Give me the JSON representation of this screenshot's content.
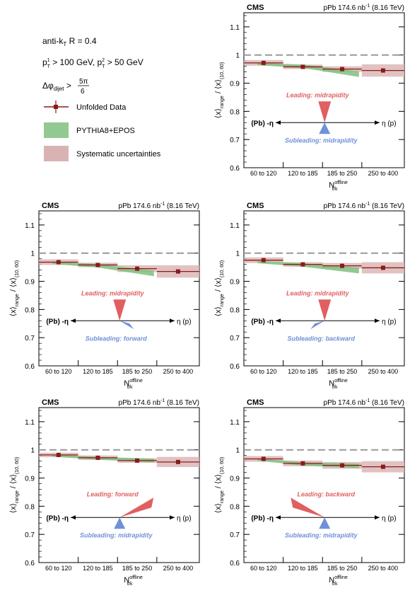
{
  "legend": {
    "line1": "anti-k",
    "line1_sub": "T",
    "line1_rest": " R = 0.4",
    "line2a": "p",
    "line2a_sup": "1",
    "line2a_sub": "T",
    "line2a_rest": " > 100 GeV, p",
    "line2b_sup": "2",
    "line2b_sub": "T",
    "line2b_rest": " > 50 GeV",
    "line3": "Δφ",
    "line3_sub": "dijet",
    "line3_rest": " > ",
    "line3_num": "5π",
    "line3_den": "6",
    "entries": [
      {
        "label": "Unfolded Data"
      },
      {
        "label": "PYTHIA8+EPOS"
      },
      {
        "label": "Systematic uncertainties"
      }
    ]
  },
  "colors": {
    "data": "#8b1a1a",
    "model": "#7fbf7f",
    "syst": "#d9b3b3",
    "leading_arrow": "#e06060",
    "leading_text": "#e06060",
    "subleading_arrow": "#7090d8",
    "subleading_text": "#7090d8"
  },
  "common": {
    "cms": "CMS",
    "lumi": "pPb 174.6 nb",
    "lumi_sup": "-1",
    "energy": " (8.16 TeV)",
    "ylabel_main": "⟨x⟩",
    "ylabel_sub1": "range",
    "ylabel_mid": " / ⟨x⟩",
    "ylabel_sub2": "(10, 60)",
    "xlabel": "N",
    "xlabel_sup": "offline",
    "xlabel_sub": "trk",
    "pb_label": "(Pb) -η",
    "p_label": "η (p)"
  },
  "chart_data": [
    {
      "type": "scatter",
      "categories": [
        "60 to 120",
        "120 to 185",
        "185 to 250",
        "250 to 400"
      ],
      "ylim": [
        0.6,
        1.15
      ],
      "yticks": [
        "0.6",
        "0.7",
        "0.8",
        "0.9",
        "1",
        "1.1"
      ],
      "data": [
        0.972,
        0.958,
        0.95,
        0.945
      ],
      "syst": [
        0.01,
        0.008,
        0.01,
        0.022
      ],
      "model": [
        0.968,
        0.96,
        0.932
      ],
      "model_err": [
        0.004,
        0.006,
        0.01
      ],
      "leading": "Leading: midrapidity",
      "subleading": "Subleading: midrapidity",
      "lead_dir": "down",
      "sub_dir": "up"
    },
    {
      "type": "scatter",
      "categories": [
        "60 to 120",
        "120 to 185",
        "185 to 250",
        "250 to 400"
      ],
      "ylim": [
        0.6,
        1.15
      ],
      "yticks": [
        "0.6",
        "0.7",
        "0.8",
        "0.9",
        "1",
        "1.1"
      ],
      "data": [
        0.968,
        0.958,
        0.945,
        0.935
      ],
      "syst": [
        0.01,
        0.008,
        0.012,
        0.022
      ],
      "model": [
        0.966,
        0.955,
        0.928
      ],
      "model_err": [
        0.004,
        0.006,
        0.01
      ],
      "leading": "Leading: midrapidity",
      "subleading": "Subleading: forward",
      "lead_dir": "down",
      "sub_dir": "down-right"
    },
    {
      "type": "scatter",
      "categories": [
        "60 to 120",
        "120 to 185",
        "185 to 250",
        "250 to 400"
      ],
      "ylim": [
        0.6,
        1.15
      ],
      "yticks": [
        "0.6",
        "0.7",
        "0.8",
        "0.9",
        "1",
        "1.1"
      ],
      "data": [
        0.975,
        0.96,
        0.955,
        0.948
      ],
      "syst": [
        0.01,
        0.008,
        0.01,
        0.02
      ],
      "model": [
        0.968,
        0.958,
        0.938
      ],
      "model_err": [
        0.004,
        0.006,
        0.01
      ],
      "leading": "Leading: midrapidity",
      "subleading": "Subleading: backward",
      "lead_dir": "down",
      "sub_dir": "down-left"
    },
    {
      "type": "scatter",
      "categories": [
        "60 to 120",
        "120 to 185",
        "185 to 250",
        "250 to 400"
      ],
      "ylim": [
        0.6,
        1.15
      ],
      "yticks": [
        "0.6",
        "0.7",
        "0.8",
        "0.9",
        "1",
        "1.1"
      ],
      "data": [
        0.982,
        0.972,
        0.962,
        0.957
      ],
      "syst": [
        0.008,
        0.008,
        0.008,
        0.018
      ],
      "model": [
        0.98,
        0.97,
        0.962
      ],
      "model_err": [
        0.004,
        0.005,
        0.007
      ],
      "leading": "Leading: forward",
      "subleading": "Subleading: midrapidity",
      "lead_dir": "up-right",
      "sub_dir": "up"
    },
    {
      "type": "scatter",
      "categories": [
        "60 to 120",
        "120 to 185",
        "185 to 250",
        "250 to 400"
      ],
      "ylim": [
        0.6,
        1.15
      ],
      "yticks": [
        "0.6",
        "0.7",
        "0.8",
        "0.9",
        "1",
        "1.1"
      ],
      "data": [
        0.968,
        0.952,
        0.945,
        0.94
      ],
      "syst": [
        0.01,
        0.01,
        0.012,
        0.02
      ],
      "model": [
        0.966,
        0.95,
        0.943
      ],
      "model_err": [
        0.004,
        0.006,
        0.008
      ],
      "leading": "Leading: backward",
      "subleading": "Subleading: midrapidity",
      "lead_dir": "up-left",
      "sub_dir": "up"
    }
  ]
}
